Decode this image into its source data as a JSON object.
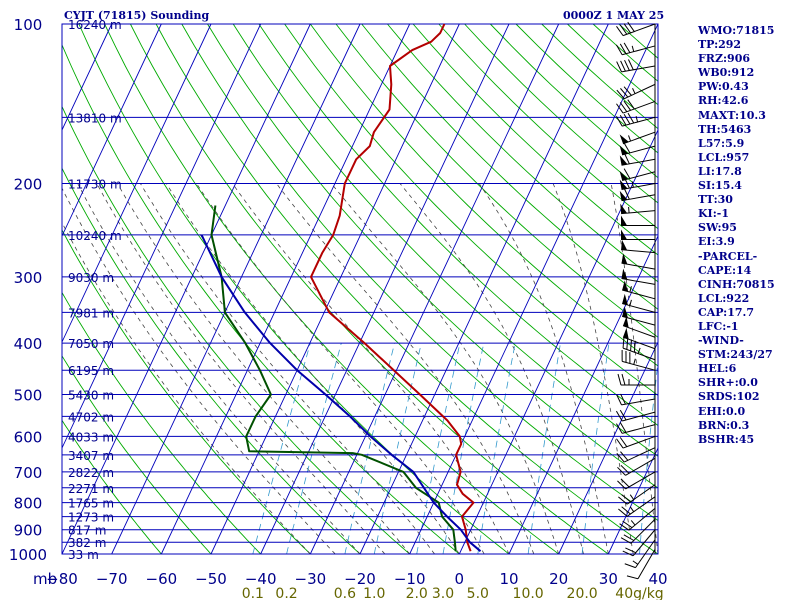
{
  "header": {
    "station": "CYJT (71815) Sounding",
    "time": "0000Z  1 MAY 25"
  },
  "stats": [
    "WMO:71815",
    "TP:292",
    "FRZ:906",
    "WB0:912",
    "PW:0.43",
    "RH:42.6",
    "MAXT:10.3",
    "TH:5463",
    "L57:5.9",
    "LCL:957",
    "LI:17.8",
    "SI:15.4",
    "TT:30",
    "KI:-1",
    "SW:95",
    "EI:3.9",
    "-PARCEL-",
    "CAPE:14",
    "CINH:70815",
    "LCL:922",
    "CAP:17.7",
    "LFC:-1",
    "-WIND-",
    "STM:243/27",
    "HEL:6",
    "SHR+:0.0",
    "SRDS:102",
    "EHI:0.0",
    "BRN:0.3",
    "BSHR:45"
  ],
  "colors": {
    "grid": "#0000bb",
    "dry_adiabat": "#00aa00",
    "moist_adiabat": "#444444",
    "mixing_ratio": "#3399cc",
    "temperature": "#b40000",
    "dewpoint": "#005000",
    "parcel": "#0000aa",
    "label": "#00008b",
    "mix_label": "#666600"
  },
  "chart_data": {
    "type": "line",
    "chart_kind": "skew-T log-p sounding",
    "y_unit_label": "mb",
    "pressure_ticks": [
      "100",
      "200",
      "300",
      "400",
      "500",
      "600",
      "700",
      "800",
      "900",
      "1000"
    ],
    "temperature_ticks": [
      "−80",
      "−70",
      "−60",
      "−50",
      "−40",
      "−30",
      "−20",
      "−10",
      "0",
      "10",
      "20",
      "30",
      "40"
    ],
    "mixing_ratio_labels": [
      "0.1",
      "0.2",
      "0.6",
      "1.0",
      "2.0",
      "3.0",
      "5.0",
      "10.0",
      "20.0",
      "40g/kg"
    ],
    "height_labels": [
      {
        "p": 100,
        "label": "16240 m"
      },
      {
        "p": 150,
        "label": "13810 m"
      },
      {
        "p": 200,
        "label": "11730 m"
      },
      {
        "p": 250,
        "label": "10240 m"
      },
      {
        "p": 300,
        "label": "9030 m"
      },
      {
        "p": 350,
        "label": "7981 m"
      },
      {
        "p": 400,
        "label": "7050 m"
      },
      {
        "p": 450,
        "label": "6195 m"
      },
      {
        "p": 500,
        "label": "5430 m"
      },
      {
        "p": 550,
        "label": "4702 m"
      },
      {
        "p": 600,
        "label": "4033 m"
      },
      {
        "p": 650,
        "label": "3407 m"
      },
      {
        "p": 700,
        "label": "2822 m"
      },
      {
        "p": 750,
        "label": "2271 m"
      },
      {
        "p": 800,
        "label": "1765 m"
      },
      {
        "p": 850,
        "label": "1273 m"
      },
      {
        "p": 900,
        "label": "817 m"
      },
      {
        "p": 950,
        "label": "382 m"
      },
      {
        "p": 1000,
        "label": "33 m"
      }
    ],
    "ylim": [
      100,
      1000
    ],
    "series": [
      {
        "points": [
          [
            988,
            2
          ],
          [
            950,
            0.5
          ],
          [
            900,
            -1
          ],
          [
            850,
            -3
          ],
          [
            800,
            -2
          ],
          [
            770,
            -5
          ],
          [
            740,
            -7
          ],
          [
            700,
            -7.5
          ],
          [
            650,
            -10
          ],
          [
            620,
            -10
          ],
          [
            600,
            -11
          ],
          [
            560,
            -15
          ],
          [
            500,
            -23
          ],
          [
            400,
            -39
          ],
          [
            350,
            -49
          ],
          [
            300,
            -56
          ],
          [
            270,
            -56
          ],
          [
            250,
            -55.5
          ],
          [
            230,
            -56
          ],
          [
            200,
            -58
          ],
          [
            180,
            -58
          ],
          [
            170,
            -56.5
          ],
          [
            160,
            -57
          ],
          [
            145,
            -56
          ],
          [
            130,
            -58
          ],
          [
            120,
            -60
          ],
          [
            112,
            -57
          ],
          [
            108,
            -54
          ],
          [
            104,
            -53
          ],
          [
            100,
            -53
          ]
        ]
      },
      {
        "points": [
          [
            988,
            -1
          ],
          [
            950,
            -2
          ],
          [
            900,
            -3.5
          ],
          [
            850,
            -7
          ],
          [
            800,
            -9
          ],
          [
            750,
            -15
          ],
          [
            700,
            -19
          ],
          [
            650,
            -29
          ],
          [
            645,
            -31
          ],
          [
            640,
            -52
          ],
          [
            600,
            -54
          ],
          [
            550,
            -54
          ],
          [
            500,
            -53
          ],
          [
            450,
            -57.5
          ],
          [
            400,
            -63
          ],
          [
            350,
            -70
          ],
          [
            300,
            -74
          ],
          [
            250,
            -80
          ],
          [
            220,
            -82
          ]
        ]
      },
      {
        "points": [
          [
            988,
            4
          ],
          [
            950,
            1
          ],
          [
            900,
            -2
          ],
          [
            850,
            -6
          ],
          [
            800,
            -10
          ],
          [
            700,
            -17
          ],
          [
            650,
            -23
          ],
          [
            600,
            -29
          ],
          [
            550,
            -35
          ],
          [
            500,
            -42
          ],
          [
            450,
            -50
          ],
          [
            400,
            -58
          ],
          [
            350,
            -66
          ],
          [
            300,
            -74
          ],
          [
            250,
            -82
          ]
        ]
      }
    ],
    "winds": [
      {
        "p": 100,
        "dir": 250,
        "spd": 40
      },
      {
        "p": 110,
        "dir": 255,
        "spd": 35
      },
      {
        "p": 120,
        "dir": 260,
        "spd": 40
      },
      {
        "p": 130,
        "dir": 245,
        "spd": 35
      },
      {
        "p": 140,
        "dir": 250,
        "spd": 40
      },
      {
        "p": 150,
        "dir": 255,
        "spd": 45
      },
      {
        "p": 160,
        "dir": 250,
        "spd": 55
      },
      {
        "p": 170,
        "dir": 255,
        "spd": 60
      },
      {
        "p": 180,
        "dir": 260,
        "spd": 60
      },
      {
        "p": 190,
        "dir": 255,
        "spd": 60
      },
      {
        "p": 200,
        "dir": 260,
        "spd": 65
      },
      {
        "p": 210,
        "dir": 260,
        "spd": 60
      },
      {
        "p": 225,
        "dir": 265,
        "spd": 55
      },
      {
        "p": 240,
        "dir": 270,
        "spd": 50
      },
      {
        "p": 255,
        "dir": 270,
        "spd": 50
      },
      {
        "p": 270,
        "dir": 275,
        "spd": 50
      },
      {
        "p": 290,
        "dir": 280,
        "spd": 50
      },
      {
        "p": 310,
        "dir": 280,
        "spd": 50
      },
      {
        "p": 330,
        "dir": 285,
        "spd": 55
      },
      {
        "p": 350,
        "dir": 285,
        "spd": 55
      },
      {
        "p": 370,
        "dir": 285,
        "spd": 50
      },
      {
        "p": 390,
        "dir": 290,
        "spd": 50
      },
      {
        "p": 410,
        "dir": 290,
        "spd": 50
      },
      {
        "p": 430,
        "dir": 290,
        "spd": 45
      },
      {
        "p": 450,
        "dir": 285,
        "spd": 35
      },
      {
        "p": 480,
        "dir": 270,
        "spd": 25
      },
      {
        "p": 510,
        "dir": 260,
        "spd": 20
      },
      {
        "p": 540,
        "dir": 255,
        "spd": 20
      },
      {
        "p": 570,
        "dir": 255,
        "spd": 20
      },
      {
        "p": 600,
        "dir": 250,
        "spd": 20
      },
      {
        "p": 630,
        "dir": 245,
        "spd": 20
      },
      {
        "p": 660,
        "dir": 240,
        "spd": 20
      },
      {
        "p": 700,
        "dir": 240,
        "spd": 20
      },
      {
        "p": 740,
        "dir": 235,
        "spd": 25
      },
      {
        "p": 780,
        "dir": 235,
        "spd": 25
      },
      {
        "p": 820,
        "dir": 230,
        "spd": 25
      },
      {
        "p": 860,
        "dir": 225,
        "spd": 20
      },
      {
        "p": 900,
        "dir": 220,
        "spd": 20
      },
      {
        "p": 940,
        "dir": 215,
        "spd": 15
      },
      {
        "p": 980,
        "dir": 210,
        "spd": 10
      }
    ]
  }
}
